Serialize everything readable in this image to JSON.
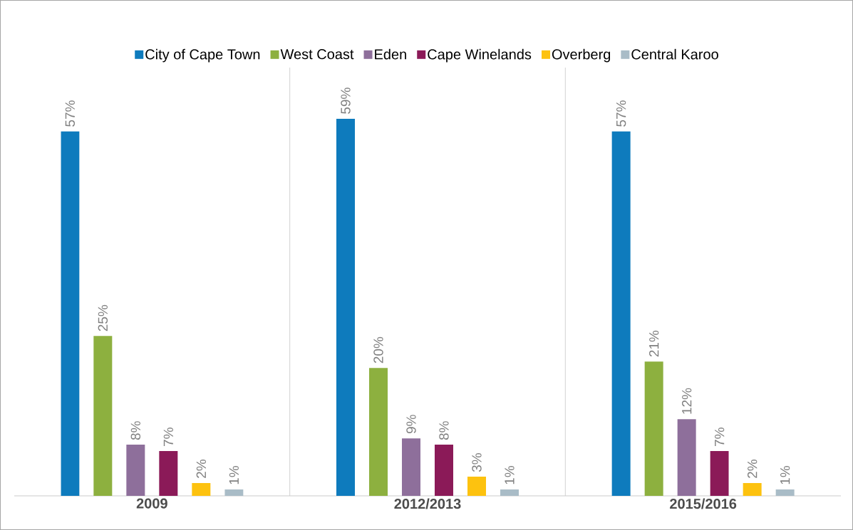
{
  "chart_data": {
    "type": "bar",
    "categories": [
      "2009",
      "2012/2013",
      "2015/2016"
    ],
    "ylim": [
      0,
      67
    ],
    "legend": "top",
    "series": [
      {
        "name": "City of Cape Town",
        "color": "#0e7bbd",
        "values": [
          57,
          59,
          57
        ],
        "value_labels": [
          "57%",
          "59%",
          "57%"
        ]
      },
      {
        "name": "West Coast",
        "color": "#8db03f",
        "values": [
          25,
          20,
          21
        ],
        "value_labels": [
          "25%",
          "20%",
          "21%"
        ]
      },
      {
        "name": "Eden",
        "color": "#8e6f9b",
        "values": [
          8,
          9,
          12
        ],
        "value_labels": [
          "8%",
          "9%",
          "12%"
        ]
      },
      {
        "name": "Cape Winelands",
        "color": "#8b1a58",
        "values": [
          7,
          8,
          7
        ],
        "value_labels": [
          "7%",
          "8%",
          "7%"
        ]
      },
      {
        "name": "Overberg",
        "color": "#fdc20f",
        "values": [
          2,
          3,
          2
        ],
        "value_labels": [
          "2%",
          "3%",
          "2%"
        ]
      },
      {
        "name": "Central Karoo",
        "color": "#a9bcc7",
        "values": [
          1,
          1,
          1
        ],
        "value_labels": [
          "1%",
          "1%",
          "1%"
        ]
      }
    ]
  }
}
